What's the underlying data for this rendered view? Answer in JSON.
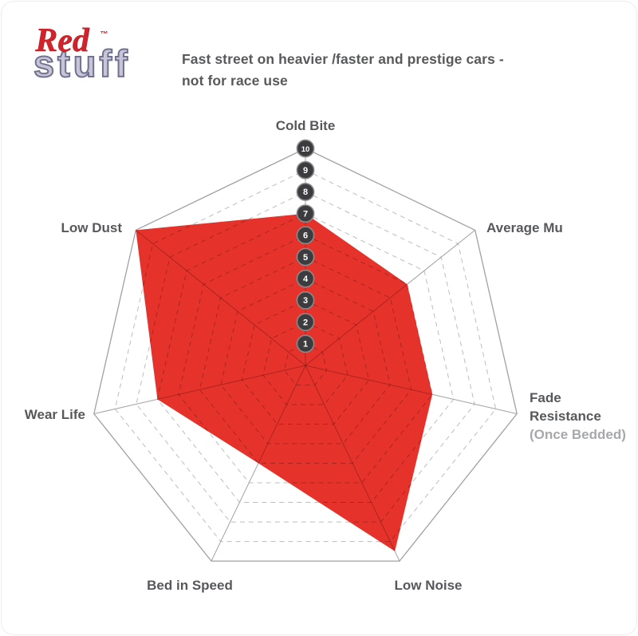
{
  "logo": {
    "red": "Red",
    "tm": "™",
    "stuff": "stuff"
  },
  "tagline": {
    "line1": "Fast street on heavier /faster and prestige cars -",
    "line2": "not for race use"
  },
  "colors": {
    "accent_red": "#e5332b",
    "inner_grid_red": "rgba(45,0,0,0.30)",
    "logo_red": "#d1232b",
    "logo_stuff_fill": "#c6c5d8",
    "logo_stuff_outline": "#72718f",
    "grid_gray": "#a0a1a4",
    "ring_gray": "#bdbdc0",
    "label_gray": "#57585b",
    "subnote_gray": "#a6a8ab",
    "badge_dark": "#3c3c3e",
    "badge_edge": "#8a8a8d"
  },
  "chart_data": {
    "type": "radar",
    "categories": [
      "Cold Bite",
      "Average Mu",
      "Fade Resistance",
      "Low Noise",
      "Bed in Speed",
      "Wear Life",
      "Low Dust"
    ],
    "subnotes": [
      "",
      "",
      "(Once Bedded)",
      "",
      "",
      "",
      ""
    ],
    "values": [
      7,
      6,
      6,
      9.5,
      5,
      7,
      10
    ],
    "axis_range": [
      0,
      10
    ],
    "scale_tick_labels": [
      "1",
      "2",
      "3",
      "4",
      "5",
      "6",
      "7",
      "8",
      "9",
      "10"
    ],
    "rings": 10,
    "grid_style": "dashed",
    "legend": "none"
  }
}
